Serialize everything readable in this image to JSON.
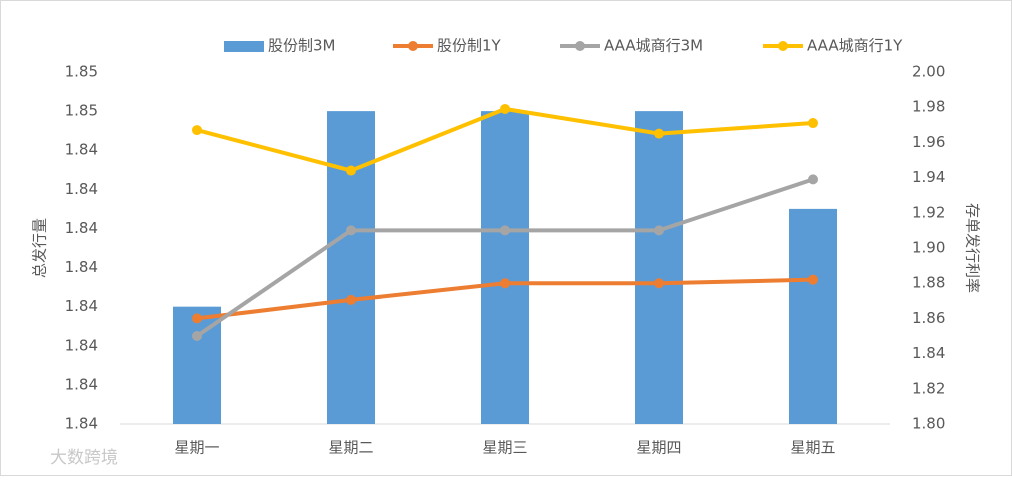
{
  "chart_data": {
    "type": "bar-line",
    "categories": [
      "星期一",
      "星期二",
      "星期三",
      "星期四",
      "星期五"
    ],
    "series": [
      {
        "name": "股份制3M",
        "type": "bar",
        "color": "#5b9bd5",
        "values": [
          1.84,
          1.845,
          1.845,
          1.845,
          1.8425
        ]
      },
      {
        "name": "股份制1Y",
        "type": "line",
        "axis": "y2",
        "color": "#ed7d31",
        "values": [
          1.86,
          1.8705,
          1.88,
          1.88,
          1.882
        ]
      },
      {
        "name": "AAA城商行3M",
        "type": "line",
        "axis": "y2",
        "color": "#a5a5a5",
        "values": [
          1.85,
          1.91,
          1.91,
          1.91,
          1.939
        ]
      },
      {
        "name": "AAA城商行1Y",
        "type": "line",
        "axis": "y2",
        "color": "#ffc000",
        "values": [
          1.967,
          1.944,
          1.979,
          1.965,
          1.971
        ]
      }
    ],
    "ylabel": "总发行量",
    "y2label": "存单发行利率",
    "ylim": [
      1.837,
      1.846
    ],
    "yticks": [
      {
        "value": 1.837,
        "label": "1.84"
      },
      {
        "value": 1.838,
        "label": "1.84"
      },
      {
        "value": 1.839,
        "label": "1.84"
      },
      {
        "value": 1.84,
        "label": "1.84"
      },
      {
        "value": 1.841,
        "label": "1.84"
      },
      {
        "value": 1.842,
        "label": "1.84"
      },
      {
        "value": 1.843,
        "label": "1.84"
      },
      {
        "value": 1.844,
        "label": "1.84"
      },
      {
        "value": 1.845,
        "label": "1.85"
      },
      {
        "value": 1.846,
        "label": "1.85"
      }
    ],
    "y2lim": [
      1.8,
      2.0
    ],
    "y2ticks": [
      {
        "value": 1.8,
        "label": "1.80"
      },
      {
        "value": 1.82,
        "label": "1.82"
      },
      {
        "value": 1.84,
        "label": "1.84"
      },
      {
        "value": 1.86,
        "label": "1.86"
      },
      {
        "value": 1.88,
        "label": "1.88"
      },
      {
        "value": 1.9,
        "label": "1.90"
      },
      {
        "value": 1.92,
        "label": "1.92"
      },
      {
        "value": 1.94,
        "label": "1.94"
      },
      {
        "value": 1.96,
        "label": "1.96"
      },
      {
        "value": 1.98,
        "label": "1.98"
      },
      {
        "value": 2.0,
        "label": "2.00"
      }
    ],
    "legend": "top",
    "grid": false,
    "watermark": "大数跨境"
  }
}
